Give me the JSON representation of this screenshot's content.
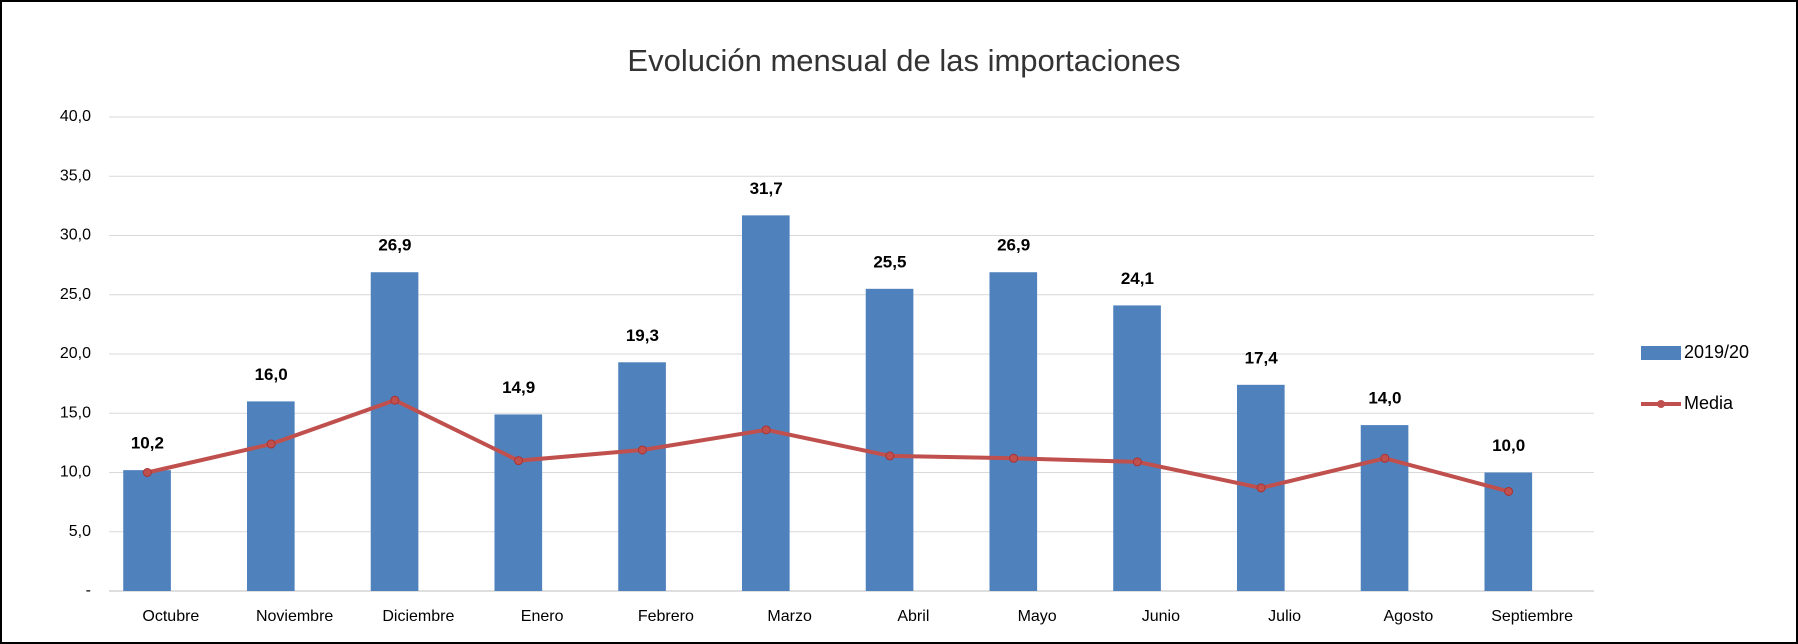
{
  "chart_data": {
    "type": "bar",
    "title": "Evolución mensual de las importaciones",
    "categories": [
      "Octubre",
      "Noviembre",
      "Diciembre",
      "Enero",
      "Febrero",
      "Marzo",
      "Abril",
      "Mayo",
      "Junio",
      "Julio",
      "Agosto",
      "Septiembre"
    ],
    "series": [
      {
        "name": "2019/20",
        "type": "bar",
        "color": "#4f81bd",
        "values": [
          10.2,
          16.0,
          26.9,
          14.9,
          19.3,
          31.7,
          25.5,
          26.9,
          24.1,
          17.4,
          14.0,
          10.0
        ],
        "value_labels": [
          "10,2",
          "16,0",
          "26,9",
          "14,9",
          "19,3",
          "31,7",
          "25,5",
          "26,9",
          "24,1",
          "17,4",
          "14,0",
          "10,0"
        ]
      },
      {
        "name": "Media",
        "type": "line",
        "color": "#c0504d",
        "values": [
          10.0,
          12.4,
          16.1,
          11.0,
          11.9,
          13.6,
          11.4,
          11.2,
          10.9,
          8.7,
          11.2,
          8.4
        ]
      }
    ],
    "ylim": [
      0,
      40
    ],
    "yticks": [
      {
        "value": 0,
        "label": "-"
      },
      {
        "value": 5,
        "label": "5,0"
      },
      {
        "value": 10,
        "label": "10,0"
      },
      {
        "value": 15,
        "label": "15,0"
      },
      {
        "value": 20,
        "label": "20,0"
      },
      {
        "value": 25,
        "label": "25,0"
      },
      {
        "value": 30,
        "label": "30,0"
      },
      {
        "value": 35,
        "label": "35,0"
      },
      {
        "value": 40,
        "label": "40,0"
      }
    ],
    "grid": true,
    "legend": "right"
  }
}
